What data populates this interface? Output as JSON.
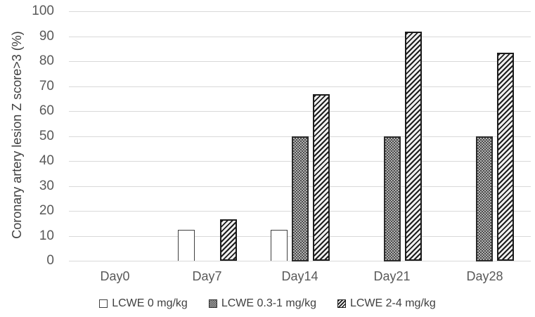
{
  "chart_data": {
    "type": "bar",
    "title": "",
    "xlabel": "",
    "ylabel": "Coronary artery lesion Z score>3 (%)",
    "ylim": [
      0,
      100
    ],
    "yticks": [
      0,
      10,
      20,
      30,
      40,
      50,
      60,
      70,
      80,
      90,
      100
    ],
    "grid": "horizontal",
    "legend_position": "bottom",
    "categories": [
      "Day0",
      "Day7",
      "Day14",
      "Day21",
      "Day28"
    ],
    "series": [
      {
        "name": "LCWE 0 mg/kg",
        "pattern": "plain-white",
        "values": [
          0,
          12.5,
          12.5,
          0,
          0
        ]
      },
      {
        "name": "LCWE 0.3-1 mg/kg",
        "pattern": "gray-dots",
        "values": [
          0,
          0,
          50,
          50,
          50
        ]
      },
      {
        "name": "LCWE 2-4 mg/kg",
        "pattern": "diagonal-hatch",
        "values": [
          0,
          16.7,
          66.7,
          91.7,
          83.3
        ]
      }
    ],
    "colors": {
      "background": "#ffffff",
      "gridline": "#d9d9d9",
      "tick_label": "#595959",
      "category_label": "#595959",
      "axis_title": "#3f3f3f",
      "legend_text": "#404040",
      "bar_border": "#2b2b2b"
    }
  }
}
